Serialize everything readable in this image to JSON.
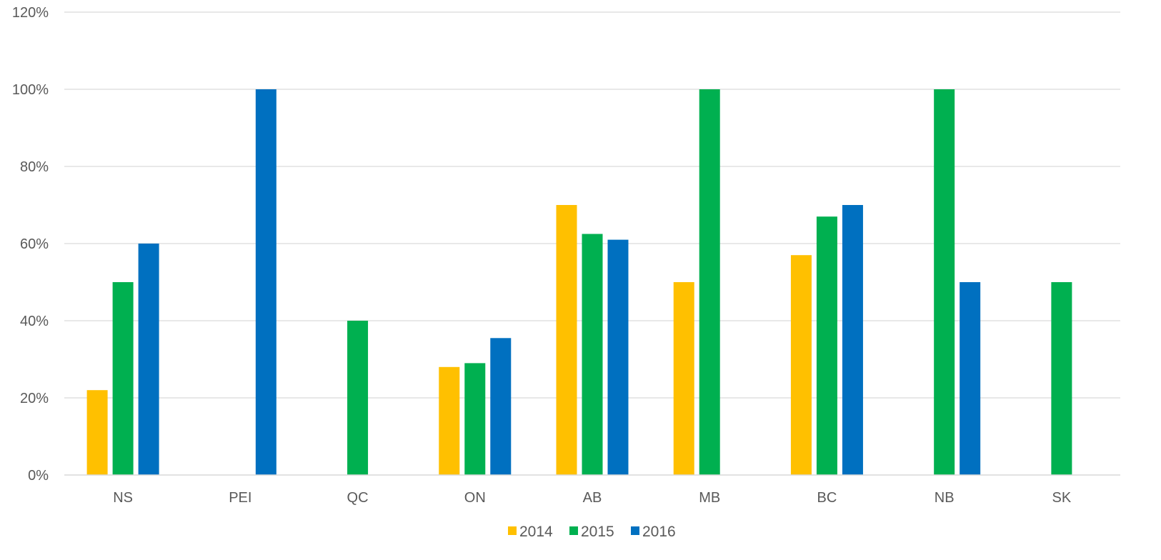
{
  "chart_data": {
    "type": "bar",
    "title": "",
    "xlabel": "",
    "ylabel": "",
    "categories": [
      "NS",
      "PEI",
      "QC",
      "ON",
      "AB",
      "MB",
      "BC",
      "NB",
      "SK"
    ],
    "series": [
      {
        "name": "2014",
        "color": "#FFC000",
        "values": [
          22,
          0,
          0,
          28,
          70,
          50,
          57,
          0,
          0
        ]
      },
      {
        "name": "2015",
        "color": "#00B050",
        "values": [
          50,
          0,
          40,
          29,
          62.5,
          100,
          67,
          100,
          50
        ]
      },
      {
        "name": "2016",
        "color": "#0070C0",
        "values": [
          60,
          100,
          0,
          35.5,
          61,
          0,
          70,
          50,
          0
        ]
      }
    ],
    "ylim": [
      0,
      120
    ],
    "yticks": [
      0,
      20,
      40,
      60,
      80,
      100,
      120
    ],
    "ytick_labels": [
      "0%",
      "20%",
      "40%",
      "60%",
      "80%",
      "100%",
      "120%"
    ],
    "grid": true,
    "gridline_color": "#D9D9D9",
    "legend_position": "bottom-center"
  }
}
